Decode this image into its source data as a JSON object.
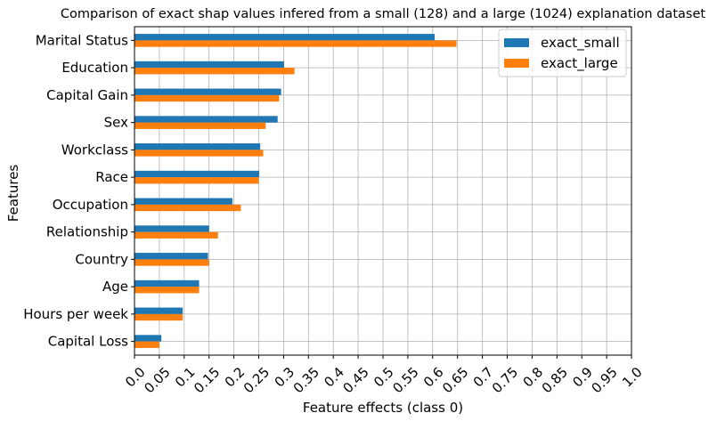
{
  "chart_data": {
    "type": "bar",
    "orientation": "horizontal",
    "title": "Comparison of exact shap values infered from a small (128) and a large (1024) explanation dataset",
    "xlabel": "Feature effects (class 0)",
    "ylabel": "Features",
    "xlim": [
      0.0,
      1.0
    ],
    "xticks": [
      "0.0",
      "0.05",
      "0.1",
      "0.15",
      "0.2",
      "0.25",
      "0.3",
      "0.35",
      "0.4",
      "0.45",
      "0.5",
      "0.55",
      "0.6",
      "0.65",
      "0.7",
      "0.75",
      "0.8",
      "0.85",
      "0.9",
      "0.95",
      "1.0"
    ],
    "grid": true,
    "legend_position": "top-right",
    "categories": [
      "Marital Status",
      "Education",
      "Capital Gain",
      "Sex",
      "Workclass",
      "Race",
      "Occupation",
      "Relationship",
      "Country",
      "Age",
      "Hours per week",
      "Capital Loss"
    ],
    "series": [
      {
        "name": "exact_small",
        "color": "#1f77b4",
        "values": [
          0.604,
          0.301,
          0.295,
          0.288,
          0.253,
          0.251,
          0.197,
          0.15,
          0.148,
          0.13,
          0.097,
          0.054
        ]
      },
      {
        "name": "exact_large",
        "color": "#ff7f0e",
        "values": [
          0.648,
          0.322,
          0.291,
          0.264,
          0.259,
          0.25,
          0.214,
          0.168,
          0.15,
          0.13,
          0.097,
          0.05
        ]
      }
    ]
  }
}
